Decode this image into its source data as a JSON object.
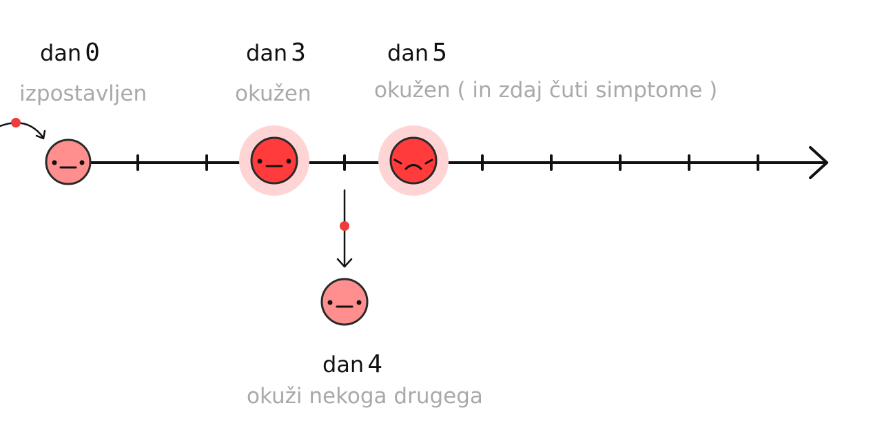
{
  "events": [
    {
      "day_word": "dan",
      "day_number": "0",
      "description": "izpostavljen"
    },
    {
      "day_word": "dan",
      "day_number": "3",
      "description": "okužen"
    },
    {
      "day_word": "dan",
      "day_number": "5",
      "description": "okužen ( in zdaj čuti simptome )"
    },
    {
      "day_word": "dan",
      "day_number": "4",
      "description": "okuži nekoga drugega"
    }
  ],
  "colors": {
    "line": "#111111",
    "face_light": "#ff8f8f",
    "face_strong": "#ff3b3b",
    "halo": "#ffd4d4",
    "dot": "#ee3b3b",
    "description_text": "#a9a9a9"
  }
}
